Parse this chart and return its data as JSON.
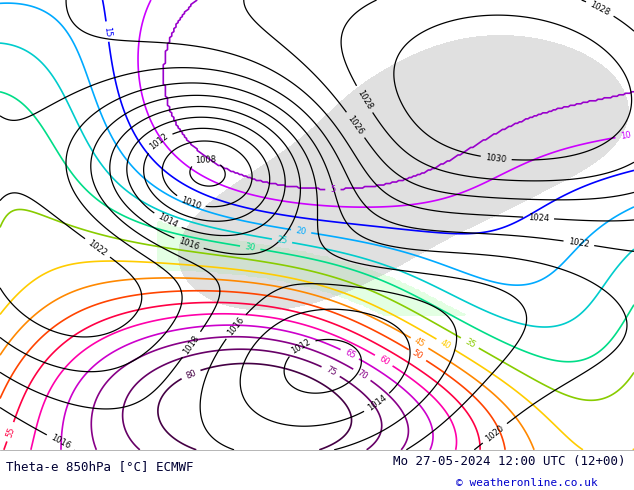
{
  "title_left": "Theta-e 850hPa [°C] ECMWF",
  "title_right": "Mo 27-05-2024 12:00 UTC (12+00)",
  "copyright": "© weatheronline.co.uk",
  "fig_width": 6.34,
  "fig_height": 4.9,
  "dpi": 100,
  "title_fontsize": 9,
  "copyright_fontsize": 8,
  "map_bg": "#f5f2ee",
  "bottom_bg_color": "#ffffff",
  "bottom_text_color": "#000033",
  "copyright_color": "#0000cc",
  "green_fill_color": "#ccffcc",
  "gray_fill_color": "#bbbbbb",
  "isobar_color": "#000000",
  "isobar_linewidth": 0.9,
  "isobar_fontsize": 6,
  "theta_fontsize": 6,
  "theta_linewidth": 1.2,
  "theta_color_map": [
    [
      5,
      "#9900cc"
    ],
    [
      10,
      "#cc00ff"
    ],
    [
      15,
      "#0000ff"
    ],
    [
      20,
      "#00aaff"
    ],
    [
      25,
      "#00cccc"
    ],
    [
      30,
      "#00dd88"
    ],
    [
      35,
      "#88cc00"
    ],
    [
      40,
      "#ffcc00"
    ],
    [
      45,
      "#ff8800"
    ],
    [
      50,
      "#ff4400"
    ],
    [
      55,
      "#ff0044"
    ],
    [
      60,
      "#ff00aa"
    ],
    [
      65,
      "#cc00cc"
    ],
    [
      70,
      "#880088"
    ],
    [
      75,
      "#660066"
    ],
    [
      80,
      "#440044"
    ]
  ]
}
